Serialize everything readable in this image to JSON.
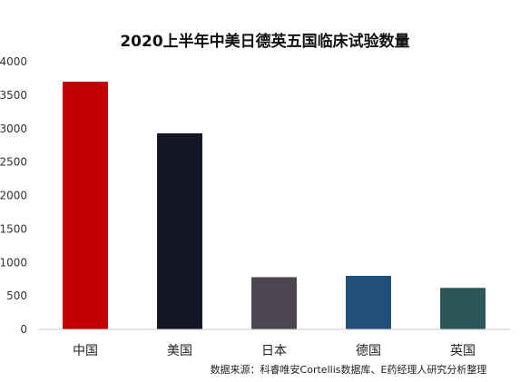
{
  "chart_data": {
    "type": "bar",
    "title": "2020上半年中美日德英五国临床试验数量",
    "categories": [
      "中国",
      "美国",
      "日本",
      "德国",
      "英国"
    ],
    "values": [
      3700,
      2930,
      780,
      800,
      620
    ],
    "colors": [
      "#c00000",
      "#141628",
      "#4d4550",
      "#214e7a",
      "#2c5659"
    ],
    "xlabel": "",
    "ylabel": "",
    "ylim": [
      0,
      4000
    ],
    "yticks": [
      0,
      500,
      1000,
      1500,
      2000,
      2500,
      3000,
      3500,
      4000
    ],
    "grid": false,
    "legend": "none"
  },
  "source_note": "数据来源：科睿唯安Cortellis数据库、E药经理人研究分析整理"
}
